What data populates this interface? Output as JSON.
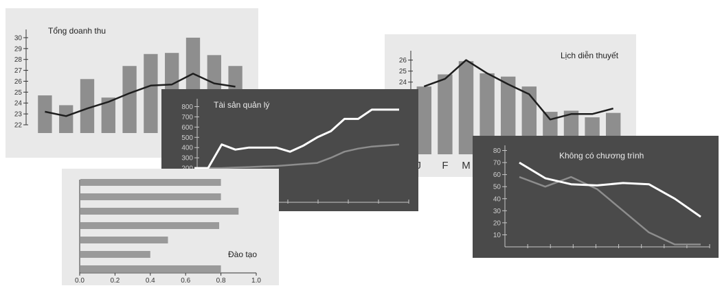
{
  "chart_data": [
    {
      "id": "revenue",
      "type": "bar",
      "title": "Tổng doanh thu",
      "yticks": [
        "22",
        "23",
        "24",
        "25",
        "26",
        "27",
        "28",
        "29",
        "30"
      ],
      "ylim": [
        22,
        30.5
      ],
      "values": [
        24.7,
        23.8,
        26.2,
        24.5,
        27.4,
        28.5,
        28.6,
        30,
        28.4,
        27.4
      ],
      "trend": [
        23.2,
        22.8,
        23.5,
        24.1,
        24.9,
        25.6,
        25.7,
        26.7,
        25.8,
        25.5
      ],
      "grid": false,
      "colors": {
        "bar": "#8e8e8e",
        "line": "#1e1e1e"
      }
    },
    {
      "id": "schedule",
      "type": "bar",
      "title": "Lịch diễn thuyết",
      "yticks": [
        "23",
        "24",
        "25",
        "26"
      ],
      "ylim": [
        18.5,
        26.6
      ],
      "values": [
        23.6,
        24.7,
        25.9,
        24.8,
        24.5,
        23.6,
        21.3,
        21.4,
        20.8,
        21.2
      ],
      "trend": [
        23.6,
        24.3,
        26,
        24.8,
        23.8,
        22.9,
        20.6,
        21.1,
        21.1,
        21.6
      ],
      "x_labels": [
        "J",
        "F",
        "M"
      ],
      "grid": false,
      "colors": {
        "bar": "#8e8e8e",
        "line": "#1e1e1e"
      }
    },
    {
      "id": "assets",
      "type": "line",
      "title": "Tài sản quản lý",
      "yticks": [
        "200",
        "300",
        "400",
        "500",
        "600",
        "700",
        "800"
      ],
      "ylim": [
        100,
        850
      ],
      "series": [
        {
          "values": [
            200,
            200,
            430,
            380,
            400,
            400,
            400,
            360,
            420,
            500,
            560,
            680,
            680,
            770,
            770,
            770
          ]
        },
        {
          "values": [
            200,
            200,
            200,
            205,
            210,
            215,
            220,
            230,
            240,
            250,
            300,
            360,
            390,
            410,
            420,
            430
          ]
        }
      ],
      "grid": false,
      "colors": {
        "series1": "#ffffff",
        "series2": "#8d8d8d"
      }
    },
    {
      "id": "training",
      "type": "bar",
      "orientation": "horizontal",
      "title": "Đào tạo",
      "values": [
        0.8,
        0.8,
        0.9,
        0.79,
        0.5,
        0.4,
        0.8
      ],
      "xticks": [
        "0.0",
        "0.2",
        "0.4",
        "0.6",
        "0.8",
        "1.0"
      ],
      "xlim": [
        0,
        1
      ],
      "grid": false,
      "colors": {
        "bar": "#9a9a9a"
      }
    },
    {
      "id": "noprog",
      "type": "line",
      "title": "Không có chương trình",
      "yticks": [
        "10",
        "20",
        "30",
        "40",
        "50",
        "60",
        "70",
        "80"
      ],
      "ylim": [
        0,
        82
      ],
      "series": [
        {
          "values": [
            70,
            57,
            52,
            51,
            53,
            52,
            40,
            25
          ]
        },
        {
          "values": [
            58,
            50,
            58,
            48,
            30,
            12,
            2,
            2
          ]
        }
      ],
      "grid": false,
      "colors": {
        "series1": "#ffffff",
        "series2": "#8d8d8d"
      }
    }
  ]
}
